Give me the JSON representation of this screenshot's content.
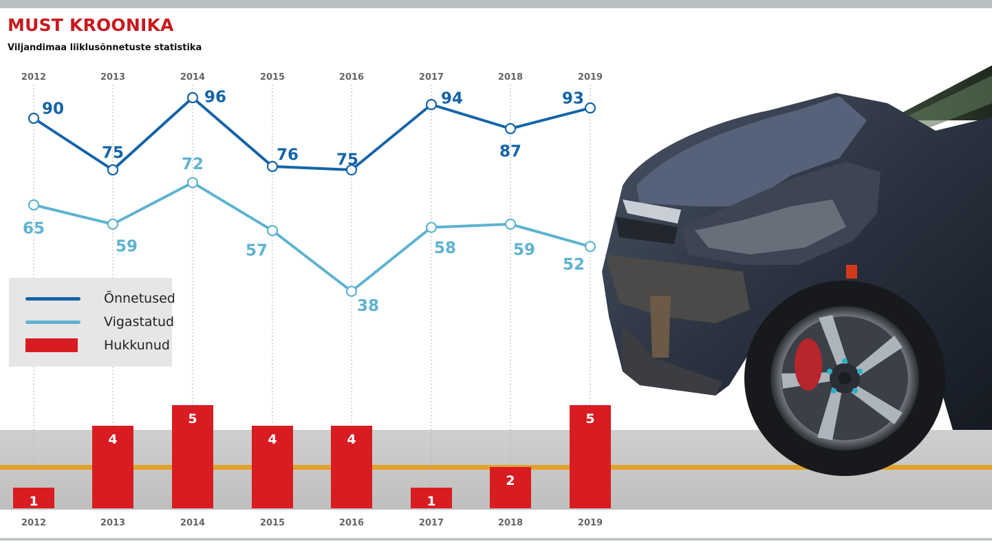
{
  "header": {
    "title": "MUST KROONIKA",
    "subtitle": "Viljandimaa liiklusõnnetuste statistika"
  },
  "legend": {
    "items": [
      {
        "label": "Õnnetused",
        "color": "#1464a8",
        "kind": "line"
      },
      {
        "label": "Vigastatud",
        "color": "#5db3d0",
        "kind": "line"
      },
      {
        "label": "Hukkunud",
        "color": "#d81c22",
        "kind": "bar"
      }
    ]
  },
  "chart_data": {
    "type": "line",
    "categories": [
      "2012",
      "2013",
      "2014",
      "2015",
      "2016",
      "2017",
      "2018",
      "2019"
    ],
    "series": [
      {
        "name": "Õnnetused",
        "type": "line",
        "color": "#1464a8",
        "values": [
          90,
          75,
          96,
          76,
          75,
          94,
          87,
          93
        ]
      },
      {
        "name": "Vigastatud",
        "type": "line",
        "color": "#5db3d0",
        "values": [
          65,
          59,
          72,
          57,
          38,
          58,
          59,
          52
        ]
      },
      {
        "name": "Hukkunud",
        "type": "bar",
        "color": "#d81c22",
        "values": [
          1,
          4,
          5,
          4,
          4,
          1,
          2,
          5
        ]
      }
    ],
    "title": "MUST KROONIKA",
    "subtitle": "Viljandimaa liiklusõnnetuste statistika",
    "grid": "vertical dotted lines",
    "legend_position": "left"
  },
  "photo": {
    "icon": "crashed-car-photo"
  }
}
